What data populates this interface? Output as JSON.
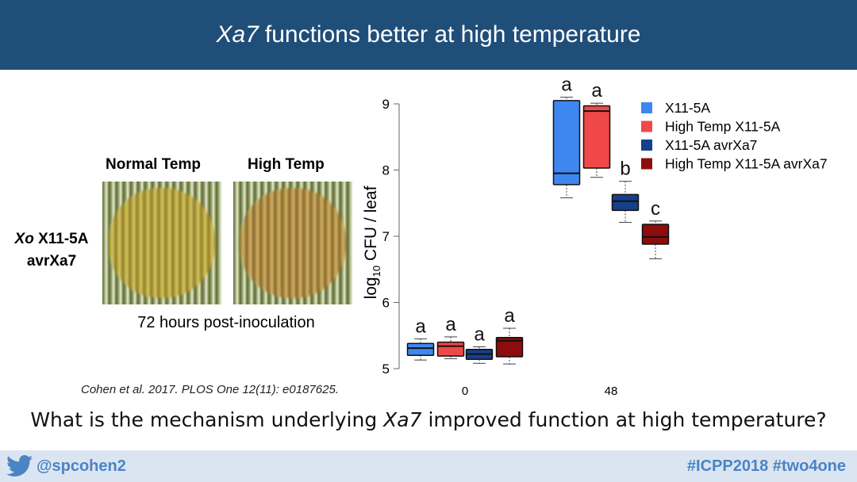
{
  "header": {
    "title_em": "Xa7",
    "title_rest": "functions better at high temperature"
  },
  "photos": {
    "normal_label": "Normal Temp",
    "high_label": "High Temp",
    "strain_em": "Xo",
    "strain_line1": "X11-5A",
    "strain_line2": "avrXa7",
    "caption": "72 hours post-inoculation"
  },
  "citation": "Cohen et al. 2017. PLOS One 12(11): e0187625.",
  "question": {
    "before": "What is the mechanism underlying",
    "em": "Xa7",
    "after": "improved function at high temperature?"
  },
  "footer": {
    "handle": "@spcohen2",
    "tags": "#ICPP2018 #two4one",
    "icon": "twitter-bird-icon"
  },
  "chart_data": {
    "type": "boxplot",
    "ylabel": "log10 CFU / leaf",
    "ylabel_main": "log",
    "ylabel_sub": "10",
    "ylabel_rest": " CFU / leaf",
    "ylim": [
      5,
      9
    ],
    "yticks": [
      5,
      6,
      7,
      8,
      9
    ],
    "categories": [
      "0",
      "48"
    ],
    "legend_position": "top-right",
    "series": [
      {
        "name": "X11-5A",
        "color": "#3f87f0",
        "groups": [
          {
            "x": "0",
            "min": 5.13,
            "q1": 5.2,
            "median": 5.31,
            "q3": 5.38,
            "max": 5.45,
            "letter": "a"
          },
          {
            "x": "48",
            "min": 7.58,
            "q1": 7.78,
            "median": 7.95,
            "q3": 9.05,
            "max": 9.1,
            "letter": "a"
          }
        ]
      },
      {
        "name": "High Temp X11-5A",
        "color": "#f04848",
        "groups": [
          {
            "x": "0",
            "min": 5.15,
            "q1": 5.19,
            "median": 5.34,
            "q3": 5.4,
            "max": 5.48,
            "letter": "a"
          },
          {
            "x": "48",
            "min": 7.89,
            "q1": 8.03,
            "median": 8.89,
            "q3": 8.97,
            "max": 9.01,
            "letter": "a"
          }
        ]
      },
      {
        "name": "X11-5A avrXa7",
        "color": "#163f8c",
        "groups": [
          {
            "x": "0",
            "min": 5.08,
            "q1": 5.14,
            "median": 5.22,
            "q3": 5.29,
            "max": 5.33,
            "letter": "a"
          },
          {
            "x": "48",
            "min": 7.21,
            "q1": 7.39,
            "median": 7.53,
            "q3": 7.63,
            "max": 7.83,
            "letter": "b"
          }
        ]
      },
      {
        "name": "High Temp X11-5A avrXa7",
        "color": "#8e0c0c",
        "groups": [
          {
            "x": "0",
            "min": 5.07,
            "q1": 5.18,
            "median": 5.42,
            "q3": 5.47,
            "max": 5.61,
            "letter": "a"
          },
          {
            "x": "48",
            "min": 6.66,
            "q1": 6.88,
            "median": 6.99,
            "q3": 7.18,
            "max": 7.23,
            "letter": "c"
          }
        ]
      }
    ]
  }
}
